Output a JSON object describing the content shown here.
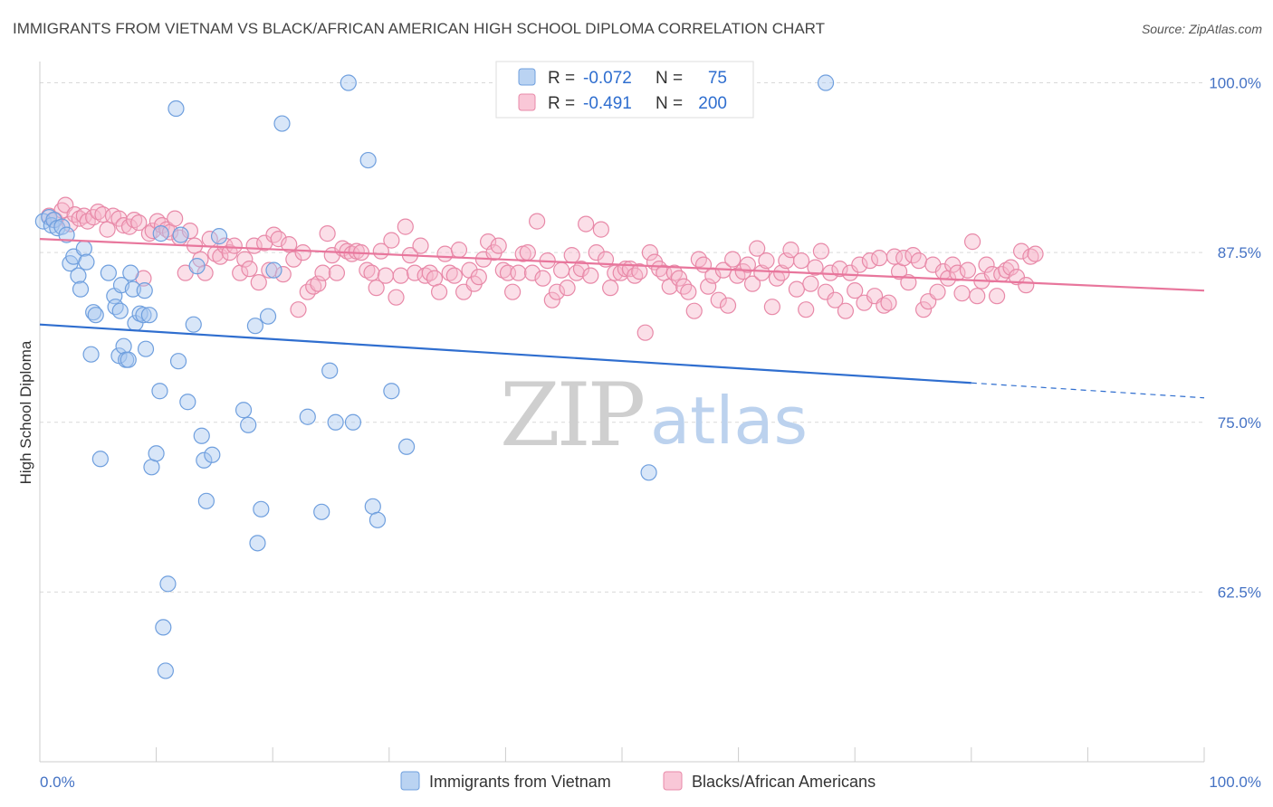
{
  "title": "IMMIGRANTS FROM VIETNAM VS BLACK/AFRICAN AMERICAN HIGH SCHOOL DIPLOMA CORRELATION CHART",
  "source": "Source: ZipAtlas.com",
  "watermark": {
    "zip": "ZIP",
    "atlas": "atlas"
  },
  "legend_top": {
    "rows": [
      {
        "r_label": "R =",
        "r_value": "-0.072",
        "n_label": "N =",
        "n_value": "75",
        "color": "#a9c8ef",
        "stroke": "#6f9fde"
      },
      {
        "r_label": "R =",
        "r_value": "-0.491",
        "n_label": "N =",
        "n_value": "200",
        "color": "#f7b9cd",
        "stroke": "#e889a8"
      }
    ]
  },
  "legend_bottom": {
    "items": [
      {
        "label": "Immigrants from Vietnam",
        "color": "#a9c8ef",
        "stroke": "#6f9fde"
      },
      {
        "label": "Blacks/African Americans",
        "color": "#f7b9cd",
        "stroke": "#e889a8"
      }
    ]
  },
  "chart_data": {
    "type": "scatter",
    "xlabel": "",
    "ylabel": "High School Diploma",
    "xlim": [
      0,
      100
    ],
    "ylim": [
      50,
      101.3
    ],
    "x_tick_labels": [
      {
        "value": 0,
        "label": "0.0%"
      },
      {
        "value": 100,
        "label": "100.0%"
      }
    ],
    "y_tick_labels": [
      {
        "value": 62.5,
        "label": "62.5%"
      },
      {
        "value": 75.0,
        "label": "75.0%"
      },
      {
        "value": 87.5,
        "label": "87.5%"
      },
      {
        "value": 100.0,
        "label": "100.0%"
      }
    ],
    "grid": "horizontal dashed",
    "series": [
      {
        "name": "Immigrants from Vietnam",
        "color": "#6f9fde",
        "trend": {
          "x": [
            0,
            80
          ],
          "y": [
            82.2,
            77.9
          ],
          "dashed_to": [
            100,
            76.8
          ],
          "color": "#2f6ecf"
        },
        "points": [
          [
            0.3,
            89.8
          ],
          [
            0.8,
            90.1
          ],
          [
            1.0,
            89.5
          ],
          [
            1.2,
            89.9
          ],
          [
            1.5,
            89.3
          ],
          [
            1.9,
            89.4
          ],
          [
            2.3,
            88.8
          ],
          [
            2.6,
            86.7
          ],
          [
            2.9,
            87.2
          ],
          [
            3.3,
            85.8
          ],
          [
            3.5,
            84.8
          ],
          [
            3.8,
            87.8
          ],
          [
            4.0,
            86.8
          ],
          [
            4.4,
            80.0
          ],
          [
            4.6,
            83.1
          ],
          [
            4.8,
            82.9
          ],
          [
            5.2,
            72.3
          ],
          [
            5.9,
            86.0
          ],
          [
            6.4,
            84.3
          ],
          [
            6.5,
            83.5
          ],
          [
            6.8,
            79.9
          ],
          [
            6.9,
            83.2
          ],
          [
            7.0,
            85.1
          ],
          [
            7.2,
            80.6
          ],
          [
            7.4,
            79.6
          ],
          [
            7.6,
            79.6
          ],
          [
            7.8,
            86.0
          ],
          [
            8.0,
            84.8
          ],
          [
            8.2,
            82.3
          ],
          [
            8.6,
            83.0
          ],
          [
            8.9,
            82.9
          ],
          [
            9.0,
            84.7
          ],
          [
            9.1,
            80.4
          ],
          [
            9.4,
            82.9
          ],
          [
            9.6,
            71.7
          ],
          [
            10.0,
            72.7
          ],
          [
            10.3,
            77.3
          ],
          [
            10.4,
            88.9
          ],
          [
            10.6,
            59.9
          ],
          [
            10.8,
            56.7
          ],
          [
            11.0,
            63.1
          ],
          [
            11.7,
            98.1
          ],
          [
            11.9,
            79.5
          ],
          [
            12.1,
            88.8
          ],
          [
            12.7,
            76.5
          ],
          [
            13.2,
            82.2
          ],
          [
            13.5,
            86.5
          ],
          [
            13.9,
            74.0
          ],
          [
            14.1,
            72.2
          ],
          [
            14.3,
            69.2
          ],
          [
            14.8,
            72.6
          ],
          [
            15.4,
            88.7
          ],
          [
            17.5,
            75.9
          ],
          [
            17.9,
            74.8
          ],
          [
            18.5,
            82.1
          ],
          [
            18.7,
            66.1
          ],
          [
            19.0,
            68.6
          ],
          [
            19.6,
            82.8
          ],
          [
            20.1,
            86.2
          ],
          [
            20.8,
            97.0
          ],
          [
            23.0,
            75.4
          ],
          [
            24.2,
            68.4
          ],
          [
            24.9,
            78.8
          ],
          [
            25.4,
            75.0
          ],
          [
            26.5,
            100.0
          ],
          [
            26.9,
            75.0
          ],
          [
            28.2,
            94.3
          ],
          [
            28.6,
            68.8
          ],
          [
            29.0,
            67.8
          ],
          [
            30.2,
            77.3
          ],
          [
            31.5,
            73.2
          ],
          [
            52.3,
            71.3
          ],
          [
            67.5,
            100.0
          ]
        ]
      },
      {
        "name": "Blacks/African Americans",
        "color": "#e889a8",
        "trend": {
          "x": [
            0,
            100
          ],
          "y": [
            88.5,
            84.7
          ],
          "color": "#e8769c"
        },
        "points": [
          [
            0.8,
            90.2
          ],
          [
            1.3,
            89.9
          ],
          [
            1.9,
            90.6
          ],
          [
            2.2,
            91.0
          ],
          [
            2.6,
            89.6
          ],
          [
            3.0,
            90.3
          ],
          [
            3.4,
            90.0
          ],
          [
            3.8,
            90.2
          ],
          [
            4.1,
            89.8
          ],
          [
            4.6,
            90.1
          ],
          [
            5.0,
            90.5
          ],
          [
            5.4,
            90.3
          ],
          [
            5.8,
            89.2
          ],
          [
            6.3,
            90.2
          ],
          [
            6.8,
            90.0
          ],
          [
            7.2,
            89.5
          ],
          [
            7.7,
            89.4
          ],
          [
            8.1,
            89.9
          ],
          [
            8.5,
            89.7
          ],
          [
            8.9,
            85.6
          ],
          [
            9.4,
            88.9
          ],
          [
            9.7,
            89.1
          ],
          [
            10.1,
            89.8
          ],
          [
            10.5,
            89.5
          ],
          [
            10.9,
            89.2
          ],
          [
            11.2,
            89.0
          ],
          [
            11.6,
            90.0
          ],
          [
            12.0,
            88.6
          ],
          [
            12.5,
            86.0
          ],
          [
            12.9,
            89.1
          ],
          [
            13.3,
            88.0
          ],
          [
            13.8,
            87.0
          ],
          [
            14.2,
            86.0
          ],
          [
            14.6,
            88.5
          ],
          [
            15.1,
            87.4
          ],
          [
            15.5,
            87.2
          ],
          [
            15.9,
            88.0
          ],
          [
            16.3,
            87.5
          ],
          [
            16.7,
            88.0
          ],
          [
            17.2,
            86.0
          ],
          [
            17.6,
            87.0
          ],
          [
            18.0,
            86.3
          ],
          [
            18.4,
            88.0
          ],
          [
            18.8,
            85.3
          ],
          [
            19.3,
            88.2
          ],
          [
            19.7,
            86.2
          ],
          [
            20.1,
            88.8
          ],
          [
            20.5,
            88.5
          ],
          [
            20.9,
            85.9
          ],
          [
            21.4,
            88.1
          ],
          [
            21.8,
            87.0
          ],
          [
            22.2,
            83.3
          ],
          [
            22.6,
            87.5
          ],
          [
            23.0,
            84.6
          ],
          [
            23.5,
            85.0
          ],
          [
            23.9,
            85.2
          ],
          [
            24.3,
            86.0
          ],
          [
            24.7,
            88.9
          ],
          [
            25.1,
            87.3
          ],
          [
            25.5,
            86.0
          ],
          [
            26.0,
            87.8
          ],
          [
            26.4,
            87.6
          ],
          [
            26.8,
            87.4
          ],
          [
            27.2,
            87.6
          ],
          [
            27.6,
            87.5
          ],
          [
            28.1,
            86.2
          ],
          [
            28.5,
            86.0
          ],
          [
            28.9,
            84.9
          ],
          [
            29.3,
            87.6
          ],
          [
            29.7,
            85.8
          ],
          [
            30.2,
            88.4
          ],
          [
            30.6,
            84.2
          ],
          [
            31.0,
            85.8
          ],
          [
            31.4,
            89.4
          ],
          [
            31.8,
            87.3
          ],
          [
            32.2,
            86.0
          ],
          [
            32.7,
            88.0
          ],
          [
            33.1,
            85.8
          ],
          [
            33.5,
            86.0
          ],
          [
            33.9,
            85.6
          ],
          [
            34.3,
            84.6
          ],
          [
            34.8,
            87.4
          ],
          [
            35.2,
            86.0
          ],
          [
            35.6,
            85.8
          ],
          [
            36.0,
            87.7
          ],
          [
            36.4,
            84.6
          ],
          [
            36.9,
            86.2
          ],
          [
            37.3,
            85.2
          ],
          [
            37.7,
            85.7
          ],
          [
            38.1,
            87.0
          ],
          [
            38.5,
            88.3
          ],
          [
            39.0,
            87.5
          ],
          [
            39.4,
            88.0
          ],
          [
            39.8,
            86.2
          ],
          [
            40.2,
            86.0
          ],
          [
            40.6,
            84.6
          ],
          [
            41.1,
            86.0
          ],
          [
            41.5,
            87.4
          ],
          [
            41.9,
            87.5
          ],
          [
            42.3,
            86.0
          ],
          [
            42.7,
            89.8
          ],
          [
            43.2,
            85.6
          ],
          [
            43.6,
            86.9
          ],
          [
            44.0,
            84.0
          ],
          [
            44.4,
            84.6
          ],
          [
            44.8,
            86.2
          ],
          [
            45.3,
            84.9
          ],
          [
            45.7,
            87.3
          ],
          [
            46.1,
            86.0
          ],
          [
            46.5,
            86.3
          ],
          [
            46.9,
            89.6
          ],
          [
            47.3,
            85.8
          ],
          [
            47.8,
            87.5
          ],
          [
            48.2,
            89.2
          ],
          [
            48.6,
            87.0
          ],
          [
            49.0,
            84.9
          ],
          [
            49.4,
            86.0
          ],
          [
            49.9,
            86.0
          ],
          [
            50.3,
            86.3
          ],
          [
            50.7,
            86.3
          ],
          [
            51.1,
            85.8
          ],
          [
            51.5,
            86.1
          ],
          [
            52.0,
            81.6
          ],
          [
            52.4,
            87.5
          ],
          [
            52.8,
            86.8
          ],
          [
            53.2,
            86.3
          ],
          [
            53.6,
            86.0
          ],
          [
            54.1,
            85.0
          ],
          [
            54.5,
            86.0
          ],
          [
            54.9,
            85.6
          ],
          [
            55.3,
            85.0
          ],
          [
            55.7,
            84.6
          ],
          [
            56.2,
            83.2
          ],
          [
            56.6,
            87.0
          ],
          [
            57.0,
            86.6
          ],
          [
            57.4,
            85.0
          ],
          [
            57.8,
            85.8
          ],
          [
            58.3,
            84.0
          ],
          [
            58.7,
            86.2
          ],
          [
            59.1,
            83.6
          ],
          [
            59.5,
            87.0
          ],
          [
            59.9,
            85.8
          ],
          [
            60.4,
            86.1
          ],
          [
            60.8,
            86.6
          ],
          [
            61.2,
            85.2
          ],
          [
            61.6,
            87.8
          ],
          [
            62.0,
            86.0
          ],
          [
            62.4,
            86.9
          ],
          [
            62.9,
            83.5
          ],
          [
            63.3,
            85.6
          ],
          [
            63.7,
            86.0
          ],
          [
            64.1,
            86.9
          ],
          [
            64.5,
            87.7
          ],
          [
            65.0,
            84.8
          ],
          [
            65.4,
            86.9
          ],
          [
            65.8,
            83.3
          ],
          [
            66.2,
            85.2
          ],
          [
            66.6,
            86.4
          ],
          [
            67.1,
            87.6
          ],
          [
            67.5,
            84.6
          ],
          [
            67.9,
            86.0
          ],
          [
            68.3,
            84.0
          ],
          [
            68.7,
            86.3
          ],
          [
            69.2,
            83.2
          ],
          [
            69.6,
            86.0
          ],
          [
            70.0,
            84.7
          ],
          [
            70.4,
            86.6
          ],
          [
            70.8,
            83.8
          ],
          [
            71.3,
            86.9
          ],
          [
            71.7,
            84.3
          ],
          [
            72.1,
            87.1
          ],
          [
            72.5,
            83.6
          ],
          [
            72.9,
            83.8
          ],
          [
            73.4,
            87.2
          ],
          [
            73.8,
            86.1
          ],
          [
            74.2,
            87.1
          ],
          [
            74.6,
            85.3
          ],
          [
            75.0,
            87.3
          ],
          [
            75.5,
            86.9
          ],
          [
            75.9,
            83.3
          ],
          [
            76.3,
            83.9
          ],
          [
            76.7,
            86.6
          ],
          [
            77.1,
            84.6
          ],
          [
            77.6,
            86.1
          ],
          [
            78.0,
            85.6
          ],
          [
            78.4,
            86.6
          ],
          [
            78.8,
            86.0
          ],
          [
            79.2,
            84.5
          ],
          [
            79.7,
            86.2
          ],
          [
            80.1,
            88.3
          ],
          [
            80.5,
            84.3
          ],
          [
            80.9,
            85.4
          ],
          [
            81.3,
            86.6
          ],
          [
            81.8,
            85.9
          ],
          [
            82.2,
            84.3
          ],
          [
            82.6,
            85.9
          ],
          [
            83.0,
            86.2
          ],
          [
            83.4,
            86.4
          ],
          [
            83.9,
            85.7
          ],
          [
            84.3,
            87.6
          ],
          [
            84.7,
            85.1
          ],
          [
            85.1,
            87.2
          ],
          [
            85.5,
            87.4
          ]
        ]
      }
    ]
  }
}
